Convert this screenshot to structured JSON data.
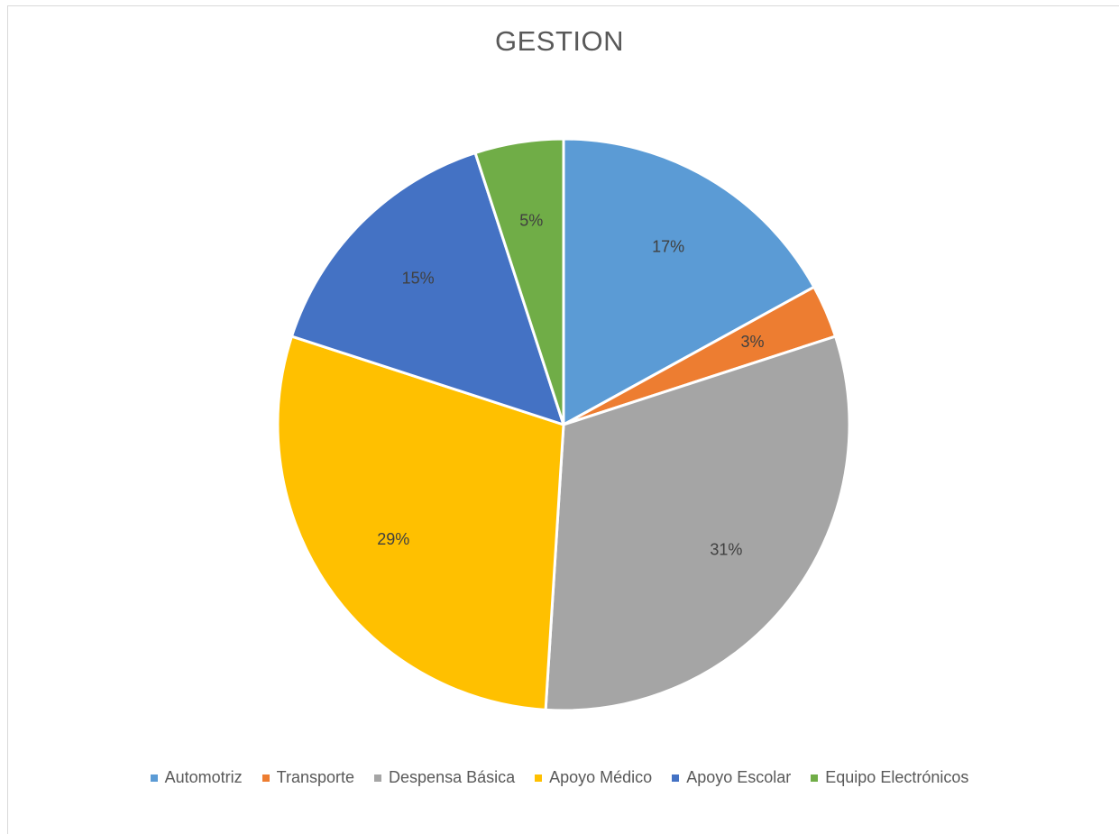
{
  "chart_data": {
    "type": "pie",
    "title": "GESTION",
    "legend_position": "bottom",
    "categories": [
      "Automotriz",
      "Transporte",
      "Despensa Básica",
      "Apoyo Médico",
      "Apoyo Escolar",
      "Equipo Electrónicos"
    ],
    "values": [
      17,
      3,
      31,
      29,
      15,
      5
    ],
    "labels": [
      "17%",
      "3%",
      "31%",
      "29%",
      "15%",
      "5%"
    ],
    "colors": [
      "#5B9BD5",
      "#ED7D31",
      "#A5A5A5",
      "#FFC000",
      "#4472C4",
      "#70AD47"
    ]
  }
}
